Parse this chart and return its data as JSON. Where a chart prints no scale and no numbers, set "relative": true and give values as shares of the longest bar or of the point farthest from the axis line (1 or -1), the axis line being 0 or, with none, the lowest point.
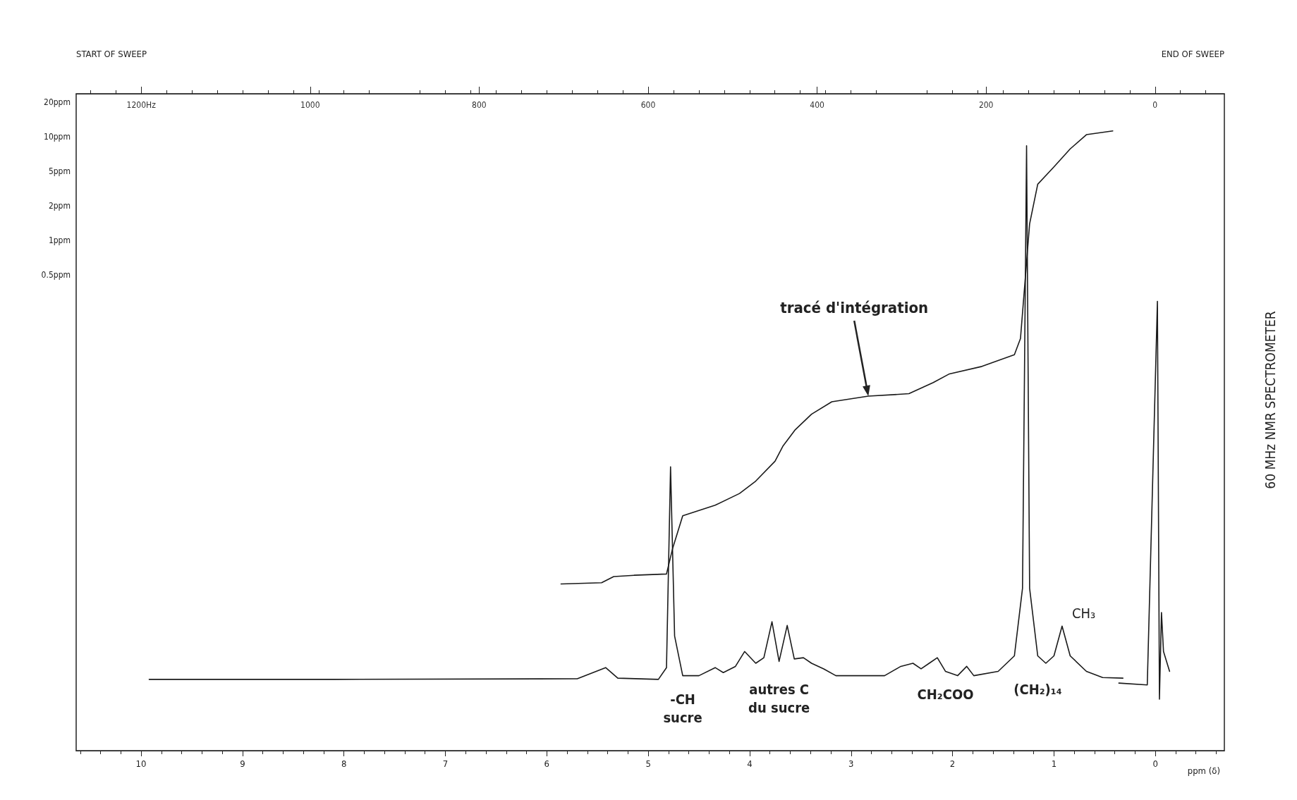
{
  "chart_data": {
    "type": "line",
    "relative": true,
    "xlabel": "ppm (δ)",
    "x": [
      9.92,
      8.09,
      5.7,
      5.42,
      5.3,
      4.9,
      4.82,
      4.78,
      4.74,
      4.66,
      4.5,
      4.34,
      4.26,
      4.14,
      4.05,
      3.94,
      3.86,
      3.78,
      3.71,
      3.63,
      3.56,
      3.47,
      3.39,
      3.27,
      3.15,
      2.67,
      2.51,
      2.39,
      2.31,
      2.23,
      2.15,
      2.07,
      1.95,
      1.86,
      1.79,
      1.55,
      1.39,
      1.31,
      1.27,
      1.24,
      1.16,
      1.08,
      1.0,
      0.92,
      0.84,
      0.68,
      0.52,
      0.32,
      0.34,
      0.36,
      0.08,
      -0.02,
      -0.04,
      -0.06,
      -0.08,
      -0.14
    ],
    "xlim": [
      10.64,
      -0.68
    ],
    "xticks": [
      10,
      9,
      8,
      7,
      6,
      5,
      4,
      3,
      2,
      1,
      0
    ],
    "x2lim": [
      1277,
      -82
    ],
    "x2ticks": [
      {
        "value": 1200,
        "label": "1200Hz"
      },
      1000,
      800,
      600,
      400,
      200,
      0
    ],
    "series": [
      {
        "color": "#1a1a1a",
        "values": [
          0.115,
          0.115,
          0.116,
          0.134,
          0.117,
          0.115,
          0.134,
          0.458,
          0.185,
          0.121,
          0.121,
          0.134,
          0.126,
          0.136,
          0.16,
          0.141,
          0.15,
          0.208,
          0.144,
          0.202,
          0.148,
          0.15,
          0.141,
          0.132,
          0.121,
          0.121,
          0.136,
          0.141,
          0.132,
          0.141,
          0.15,
          0.128,
          0.121,
          0.136,
          0.121,
          0.128,
          0.153,
          0.262,
          0.976,
          0.262,
          0.153,
          0.141,
          0.153,
          0.201,
          0.153,
          0.128,
          0.118,
          0.117,
          null,
          0.109,
          0.106,
          0.725,
          0.083,
          0.223,
          0.16,
          0.128
        ]
      },
      {
        "color": "#1a1a1a",
        "x": [
          5.86,
          5.46,
          5.34,
          5.14,
          4.82,
          4.76,
          4.66,
          4.34,
          4.1,
          3.94,
          3.75,
          3.67,
          3.55,
          3.39,
          3.19,
          2.83,
          2.43,
          2.19,
          2.03,
          1.71,
          1.39,
          1.33,
          1.24,
          1.16,
          1.0,
          0.84,
          0.68,
          0.42
        ],
        "values": [
          0.269,
          0.271,
          0.281,
          0.283,
          0.285,
          0.326,
          0.379,
          0.396,
          0.415,
          0.435,
          0.467,
          0.492,
          0.518,
          0.543,
          0.563,
          0.572,
          0.576,
          0.594,
          0.608,
          0.62,
          0.639,
          0.665,
          0.85,
          0.914,
          0.942,
          0.971,
          0.994,
          1.0
        ]
      }
    ],
    "annotations": [
      "START OF SWEEP",
      "END OF SWEEP",
      "60 MHz NMR SPECTROMETER",
      "20ppm",
      "10ppm",
      "5ppm",
      "2ppm",
      "1ppm",
      "0.5ppm",
      {
        "text": "-CH\nsucre",
        "x": 4.66,
        "y": 0.121
      },
      {
        "text": "autres C\ndu sucre",
        "x": 3.71,
        "y": 0.144
      },
      {
        "text": "CH₂COO",
        "x": 2.07,
        "y": 0.128
      },
      {
        "text": "(CH₂)₁₄",
        "x": 1.16,
        "y": 0.153
      },
      {
        "text": "CH₃",
        "x": 0.92,
        "y": 0.201
      },
      {
        "text": "tracé d'intégration",
        "x": 2.83,
        "y": 0.572
      }
    ],
    "grid": false,
    "marker": "none",
    "line_style": "solid"
  }
}
